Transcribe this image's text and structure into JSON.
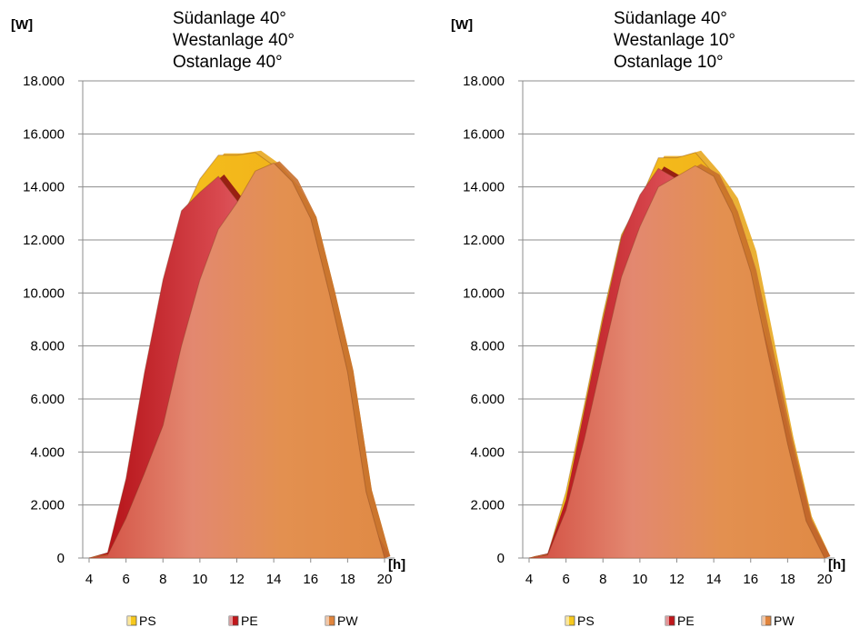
{
  "chart_data": [
    {
      "type": "area",
      "title_lines": [
        "Südanlage 40°",
        "Westanlage 40°",
        "Ostanlage 40°"
      ],
      "ylabel": "[W]",
      "xlabel": "[h]",
      "ylim": [
        0,
        18000
      ],
      "xlim": [
        4,
        20
      ],
      "yticks": [
        0,
        2000,
        4000,
        6000,
        8000,
        10000,
        12000,
        14000,
        16000,
        18000
      ],
      "ytick_labels": [
        "0",
        "2.000",
        "4.000",
        "6.000",
        "8.000",
        "10.000",
        "12.000",
        "14.000",
        "16.000",
        "18.000"
      ],
      "xticks": [
        4,
        6,
        8,
        10,
        12,
        14,
        16,
        18,
        20
      ],
      "xtick_labels": [
        "4",
        "6",
        "8",
        "10",
        "12",
        "14",
        "16",
        "18",
        "20"
      ],
      "grid": true,
      "legend_position": "bottom",
      "x": [
        4,
        5,
        6,
        7,
        8,
        9,
        10,
        11,
        12,
        13,
        14,
        15,
        16,
        17,
        18,
        19,
        20
      ],
      "series": [
        {
          "name": "PS",
          "color": "#F5C518",
          "values": [
            0,
            100,
            2500,
            6000,
            10000,
            12800,
            14300,
            15200,
            15200,
            15300,
            14800,
            14000,
            12800,
            10000,
            7000,
            2500,
            0
          ]
        },
        {
          "name": "PE",
          "color": "#C0171B",
          "values": [
            0,
            200,
            3000,
            7000,
            10500,
            13100,
            13800,
            14400,
            13500,
            12500,
            11000,
            8500,
            6000,
            4200,
            3000,
            1200,
            0
          ]
        },
        {
          "name": "PW",
          "color": "#E0843C",
          "values": [
            0,
            100,
            1500,
            3200,
            5000,
            8000,
            10500,
            12400,
            13400,
            14600,
            14900,
            14200,
            12800,
            10000,
            7000,
            2500,
            0
          ]
        }
      ]
    },
    {
      "type": "area",
      "title_lines": [
        "Südanlage 40°",
        "Westanlage 10°",
        "Ostanlage 10°"
      ],
      "ylabel": "[W]",
      "xlabel": "[h]",
      "ylim": [
        0,
        18000
      ],
      "xlim": [
        4,
        20
      ],
      "yticks": [
        0,
        2000,
        4000,
        6000,
        8000,
        10000,
        12000,
        14000,
        16000,
        18000
      ],
      "ytick_labels": [
        "0",
        "2.000",
        "4.000",
        "6.000",
        "8.000",
        "10.000",
        "12.000",
        "14.000",
        "16.000",
        "18.000"
      ],
      "xticks": [
        4,
        6,
        8,
        10,
        12,
        14,
        16,
        18,
        20
      ],
      "xtick_labels": [
        "4",
        "6",
        "8",
        "10",
        "12",
        "14",
        "16",
        "18",
        "20"
      ],
      "grid": true,
      "legend_position": "bottom",
      "x": [
        4,
        5,
        6,
        7,
        8,
        9,
        10,
        11,
        12,
        13,
        14,
        15,
        16,
        17,
        18,
        19,
        20
      ],
      "series": [
        {
          "name": "PS",
          "color": "#F5C518",
          "values": [
            0,
            100,
            2500,
            5800,
            9200,
            12200,
            13500,
            15100,
            15100,
            15300,
            14500,
            13500,
            11500,
            8000,
            4500,
            1500,
            0
          ]
        },
        {
          "name": "PE",
          "color": "#C0171B",
          "values": [
            0,
            150,
            2200,
            5600,
            9000,
            12100,
            13700,
            14700,
            14300,
            14200,
            13200,
            11500,
            9500,
            7000,
            4000,
            1300,
            0
          ]
        },
        {
          "name": "PW",
          "color": "#E0843C",
          "values": [
            0,
            100,
            1800,
            4500,
            7600,
            10600,
            12500,
            14000,
            14400,
            14800,
            14400,
            13000,
            10800,
            7500,
            4300,
            1400,
            0
          ]
        }
      ]
    }
  ]
}
